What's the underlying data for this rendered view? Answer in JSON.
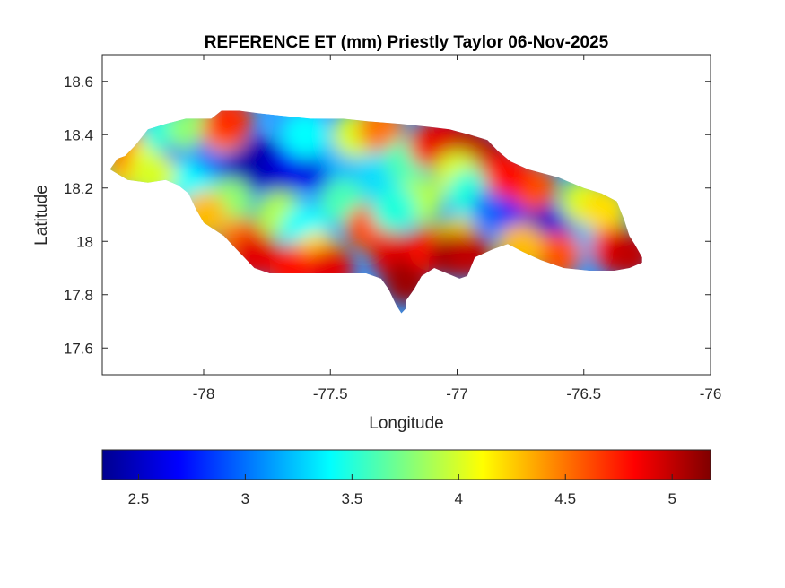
{
  "chart_data": {
    "type": "heatmap",
    "title": "REFERENCE ET (mm) Priestly Taylor 06-Nov-2025",
    "xlabel": "Longitude",
    "ylabel": "Latitude",
    "xlim": [
      -78.4,
      -76
    ],
    "ylim": [
      17.5,
      18.7
    ],
    "xticks": [
      -78,
      -77.5,
      -77,
      -76.5,
      -76
    ],
    "yticks": [
      17.6,
      17.8,
      18,
      18.2,
      18.4,
      18.6
    ],
    "grid": false,
    "colormap": "jet",
    "colorbar": {
      "orientation": "horizontal",
      "placement": "bottom",
      "range": [
        2.33,
        5.18
      ],
      "ticks": [
        2.5,
        3,
        3.5,
        4,
        4.5,
        5
      ]
    },
    "outline": [
      [
        -78.37,
        18.27
      ],
      [
        -78.34,
        18.31
      ],
      [
        -78.31,
        18.32
      ],
      [
        -78.27,
        18.36
      ],
      [
        -78.22,
        18.42
      ],
      [
        -78.15,
        18.44
      ],
      [
        -78.07,
        18.46
      ],
      [
        -77.97,
        18.46
      ],
      [
        -77.93,
        18.49
      ],
      [
        -77.86,
        18.49
      ],
      [
        -77.78,
        18.48
      ],
      [
        -77.68,
        18.47
      ],
      [
        -77.58,
        18.46
      ],
      [
        -77.45,
        18.46
      ],
      [
        -77.35,
        18.45
      ],
      [
        -77.22,
        18.44
      ],
      [
        -77.12,
        18.43
      ],
      [
        -77.03,
        18.42
      ],
      [
        -76.95,
        18.4
      ],
      [
        -76.88,
        18.38
      ],
      [
        -76.84,
        18.34
      ],
      [
        -76.79,
        18.3
      ],
      [
        -76.72,
        18.27
      ],
      [
        -76.6,
        18.24
      ],
      [
        -76.5,
        18.2
      ],
      [
        -76.43,
        18.18
      ],
      [
        -76.37,
        18.15
      ],
      [
        -76.34,
        18.08
      ],
      [
        -76.32,
        18.02
      ],
      [
        -76.3,
        17.99
      ],
      [
        -76.27,
        17.94
      ],
      [
        -76.27,
        17.92
      ],
      [
        -76.32,
        17.9
      ],
      [
        -76.38,
        17.89
      ],
      [
        -76.48,
        17.89
      ],
      [
        -76.58,
        17.9
      ],
      [
        -76.67,
        17.93
      ],
      [
        -76.74,
        17.96
      ],
      [
        -76.8,
        17.99
      ],
      [
        -76.86,
        17.97
      ],
      [
        -76.93,
        17.94
      ],
      [
        -76.96,
        17.87
      ],
      [
        -76.99,
        17.86
      ],
      [
        -77.04,
        17.88
      ],
      [
        -77.09,
        17.9
      ],
      [
        -77.14,
        17.87
      ],
      [
        -77.17,
        17.82
      ],
      [
        -77.2,
        17.78
      ],
      [
        -77.2,
        17.75
      ],
      [
        -77.22,
        17.73
      ],
      [
        -77.24,
        17.76
      ],
      [
        -77.27,
        17.82
      ],
      [
        -77.3,
        17.86
      ],
      [
        -77.36,
        17.88
      ],
      [
        -77.44,
        17.88
      ],
      [
        -77.55,
        17.88
      ],
      [
        -77.65,
        17.88
      ],
      [
        -77.74,
        17.88
      ],
      [
        -77.8,
        17.9
      ],
      [
        -77.87,
        17.97
      ],
      [
        -77.92,
        18.02
      ],
      [
        -78.0,
        18.07
      ],
      [
        -78.03,
        18.12
      ],
      [
        -78.06,
        18.18
      ],
      [
        -78.1,
        18.21
      ],
      [
        -78.15,
        18.23
      ],
      [
        -78.22,
        18.22
      ],
      [
        -78.3,
        18.23
      ]
    ],
    "samples": [
      [
        -78.3,
        18.28,
        4.2
      ],
      [
        -78.28,
        18.33,
        4.5
      ],
      [
        -78.2,
        18.3,
        4.1
      ],
      [
        -78.15,
        18.4,
        3.5
      ],
      [
        -78.1,
        18.28,
        2.9
      ],
      [
        -78.05,
        18.22,
        3.4
      ],
      [
        -78.05,
        18.42,
        3.8
      ],
      [
        -77.95,
        18.33,
        3.0
      ],
      [
        -77.92,
        18.42,
        4.4
      ],
      [
        -77.9,
        18.45,
        4.7
      ],
      [
        -77.85,
        18.25,
        2.5
      ],
      [
        -77.78,
        18.3,
        2.4
      ],
      [
        -77.7,
        18.26,
        2.5
      ],
      [
        -77.62,
        18.32,
        2.7
      ],
      [
        -77.55,
        18.28,
        2.6
      ],
      [
        -77.6,
        18.4,
        3.4
      ],
      [
        -77.45,
        18.32,
        3.2
      ],
      [
        -77.4,
        18.4,
        4.0
      ],
      [
        -77.3,
        18.42,
        4.5
      ],
      [
        -77.3,
        18.25,
        3.3
      ],
      [
        -77.2,
        18.3,
        3.6
      ],
      [
        -77.1,
        18.36,
        4.7
      ],
      [
        -77.05,
        18.38,
        4.9
      ],
      [
        -76.95,
        18.35,
        5.0
      ],
      [
        -76.88,
        18.3,
        5.0
      ],
      [
        -77.0,
        18.25,
        4.0
      ],
      [
        -76.95,
        18.18,
        3.5
      ],
      [
        -76.85,
        18.12,
        3.0
      ],
      [
        -76.75,
        18.1,
        2.7
      ],
      [
        -76.65,
        18.05,
        2.5
      ],
      [
        -76.55,
        18.05,
        2.6
      ],
      [
        -76.45,
        18.02,
        3.2
      ],
      [
        -76.5,
        18.15,
        4.0
      ],
      [
        -76.42,
        18.12,
        4.2
      ],
      [
        -76.38,
        17.97,
        4.8
      ],
      [
        -76.32,
        17.95,
        5.0
      ],
      [
        -76.6,
        17.95,
        4.6
      ],
      [
        -76.75,
        17.98,
        4.3
      ],
      [
        -76.7,
        18.2,
        4.6
      ],
      [
        -76.8,
        18.25,
        4.8
      ],
      [
        -77.9,
        18.15,
        3.8
      ],
      [
        -78.0,
        18.1,
        4.3
      ],
      [
        -77.85,
        18.0,
        4.5
      ],
      [
        -77.8,
        17.95,
        4.9
      ],
      [
        -77.7,
        18.1,
        3.9
      ],
      [
        -77.6,
        18.05,
        3.4
      ],
      [
        -77.55,
        17.95,
        4.2
      ],
      [
        -77.45,
        18.15,
        3.6
      ],
      [
        -77.35,
        18.05,
        4.6
      ],
      [
        -77.25,
        17.95,
        4.9
      ],
      [
        -77.2,
        17.85,
        5.1
      ],
      [
        -77.1,
        17.97,
        4.8
      ],
      [
        -77.0,
        18.0,
        4.2
      ],
      [
        -77.02,
        17.95,
        5.1
      ],
      [
        -76.95,
        17.95,
        5.0
      ],
      [
        -77.15,
        18.15,
        3.9
      ],
      [
        -77.25,
        18.12,
        3.5
      ],
      [
        -77.5,
        17.9,
        4.9
      ],
      [
        -77.65,
        17.9,
        4.8
      ],
      [
        -78.2,
        18.25,
        4.0
      ]
    ]
  }
}
